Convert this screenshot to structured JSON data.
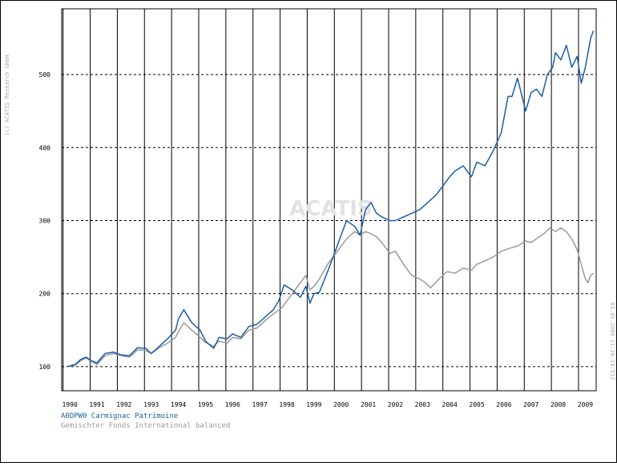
{
  "copyright": "(c) ACATIS Research GmbH",
  "watermark": "ACATIS",
  "timestamp": "03.05.2009 11:28:18:512",
  "legend": [
    {
      "label": "A0DPW0 Carmignac Patrimoine",
      "color": "#1a5fa8"
    },
    {
      "label": "Gemischter Fonds International balanced",
      "color": "#9a9a9a"
    }
  ],
  "chart_data": {
    "type": "line",
    "title": "",
    "xlabel": "",
    "ylabel": "",
    "xlim": [
      1989.7,
      2009.4
    ],
    "ylim": [
      67,
      590
    ],
    "y_ticks": [
      100,
      200,
      300,
      400,
      500
    ],
    "x_ticks": [
      "1990",
      "1991",
      "1992",
      "1993",
      "1994",
      "1995",
      "1996",
      "1997",
      "1998",
      "1999",
      "2000",
      "2001",
      "2002",
      "2003",
      "2004",
      "2005",
      "2006",
      "2007",
      "2008",
      "2009"
    ],
    "grid": {
      "vertical": "solid",
      "horizontal": "dashed"
    },
    "series": [
      {
        "name": "A0DPW0 Carmignac Patrimoine",
        "color": "#1a5fa8",
        "x": [
          1989.9,
          1990.2,
          1990.4,
          1990.6,
          1990.8,
          1991.0,
          1991.3,
          1991.6,
          1991.9,
          1992.2,
          1992.5,
          1992.8,
          1993.0,
          1993.3,
          1993.6,
          1993.9,
          1994.0,
          1994.2,
          1994.5,
          1994.8,
          1995.0,
          1995.3,
          1995.5,
          1995.8,
          1996.0,
          1996.3,
          1996.6,
          1996.9,
          1997.2,
          1997.5,
          1997.7,
          1997.9,
          1998.2,
          1998.5,
          1998.7,
          1998.85,
          1999.0,
          1999.2,
          1999.5,
          1999.8,
          2000.0,
          2000.2,
          2000.5,
          2000.7,
          2000.9,
          2001.1,
          2001.3,
          2001.5,
          2001.8,
          2002.0,
          2002.3,
          2002.6,
          2002.9,
          2003.2,
          2003.5,
          2003.8,
          2004.0,
          2004.2,
          2004.5,
          2004.8,
          2005.0,
          2005.3,
          2005.6,
          2005.9,
          2006.0,
          2006.15,
          2006.3,
          2006.5,
          2006.8,
          2007.0,
          2007.2,
          2007.4,
          2007.6,
          2007.8,
          2007.9,
          2008.1,
          2008.3,
          2008.5,
          2008.7,
          2008.85,
          2009.0,
          2009.1,
          2009.2,
          2009.3
        ],
        "values": [
          100,
          103,
          110,
          113,
          108,
          105,
          118,
          120,
          116,
          115,
          126,
          125,
          118,
          128,
          138,
          150,
          165,
          178,
          160,
          150,
          135,
          125,
          140,
          138,
          145,
          140,
          155,
          158,
          168,
          178,
          190,
          212,
          205,
          195,
          210,
          187,
          200,
          202,
          230,
          260,
          280,
          300,
          292,
          280,
          315,
          325,
          310,
          305,
          300,
          300,
          305,
          310,
          315,
          325,
          335,
          350,
          360,
          368,
          375,
          360,
          380,
          375,
          395,
          420,
          440,
          470,
          470,
          495,
          450,
          475,
          480,
          470,
          500,
          510,
          530,
          520,
          540,
          510,
          525,
          488,
          510,
          530,
          550,
          560
        ]
      },
      {
        "name": "Gemischter Fonds International balanced",
        "color": "#9a9a9a",
        "x": [
          1989.9,
          1990.2,
          1990.4,
          1990.6,
          1990.8,
          1991.0,
          1991.3,
          1991.6,
          1991.9,
          1992.2,
          1992.5,
          1992.8,
          1993.0,
          1993.3,
          1993.6,
          1993.9,
          1994.0,
          1994.2,
          1994.5,
          1994.8,
          1995.0,
          1995.3,
          1995.5,
          1995.8,
          1996.0,
          1996.3,
          1996.6,
          1996.9,
          1997.2,
          1997.5,
          1997.8,
          1998.0,
          1998.2,
          1998.5,
          1998.7,
          1998.85,
          1999.0,
          1999.2,
          1999.5,
          1999.8,
          2000.0,
          2000.2,
          2000.5,
          2000.7,
          2000.9,
          2001.1,
          2001.3,
          2001.5,
          2001.8,
          2002.0,
          2002.3,
          2002.6,
          2002.9,
          2003.1,
          2003.3,
          2003.6,
          2003.9,
          2004.2,
          2004.5,
          2004.8,
          2005.0,
          2005.3,
          2005.6,
          2005.9,
          2006.2,
          2006.5,
          2006.8,
          2007.0,
          2007.2,
          2007.5,
          2007.7,
          2007.9,
          2008.1,
          2008.3,
          2008.5,
          2008.7,
          2008.85,
          2009.0,
          2009.1,
          2009.2,
          2009.3
        ],
        "values": [
          100,
          102,
          108,
          112,
          107,
          103,
          115,
          118,
          115,
          113,
          123,
          122,
          118,
          126,
          132,
          140,
          148,
          160,
          150,
          140,
          133,
          128,
          135,
          132,
          140,
          138,
          150,
          153,
          163,
          172,
          180,
          190,
          200,
          215,
          225,
          205,
          210,
          220,
          240,
          255,
          265,
          275,
          285,
          280,
          285,
          282,
          278,
          270,
          255,
          258,
          240,
          225,
          220,
          215,
          208,
          220,
          230,
          228,
          235,
          232,
          240,
          245,
          250,
          258,
          262,
          265,
          272,
          270,
          275,
          283,
          290,
          285,
          290,
          285,
          275,
          260,
          240,
          220,
          215,
          225,
          228
        ]
      }
    ]
  }
}
